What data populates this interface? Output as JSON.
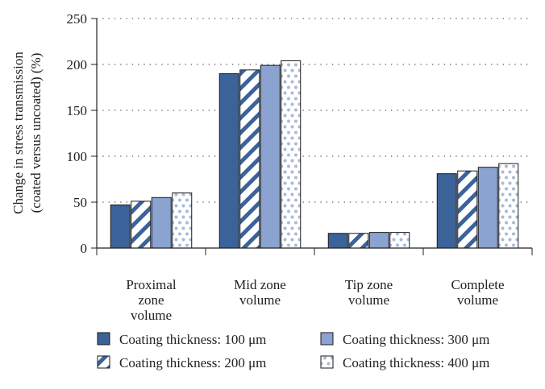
{
  "chart_data": {
    "type": "bar",
    "ylabel_lines": [
      "Change in stress transmission",
      "(coated versus uncoated) (%)"
    ],
    "ylim": [
      0,
      250
    ],
    "yticks": [
      0,
      50,
      100,
      150,
      200,
      250
    ],
    "grid": "horizontal dotted",
    "legend_position": "bottom",
    "categories": [
      [
        "Proximal",
        "zone",
        "volume"
      ],
      [
        "Mid zone",
        "volume"
      ],
      [
        "Tip zone",
        "volume"
      ],
      [
        "Complete",
        "volume"
      ]
    ],
    "series": [
      {
        "name": "Coating thickness: 100 μm",
        "pattern": "solid",
        "color": "#3b6399",
        "values": [
          47,
          190,
          16,
          81
        ]
      },
      {
        "name": "Coating thickness: 200 μm",
        "pattern": "hatch",
        "color": "#3b6399",
        "values": [
          51,
          194,
          16,
          84
        ]
      },
      {
        "name": "Coating thickness: 300 μm",
        "pattern": "solid",
        "color": "#8aa3d1",
        "values": [
          55,
          199,
          17,
          88
        ]
      },
      {
        "name": "Coating thickness: 400 μm",
        "pattern": "dots",
        "color": "#a9bad8",
        "values": [
          60,
          204,
          17,
          92
        ]
      }
    ]
  }
}
